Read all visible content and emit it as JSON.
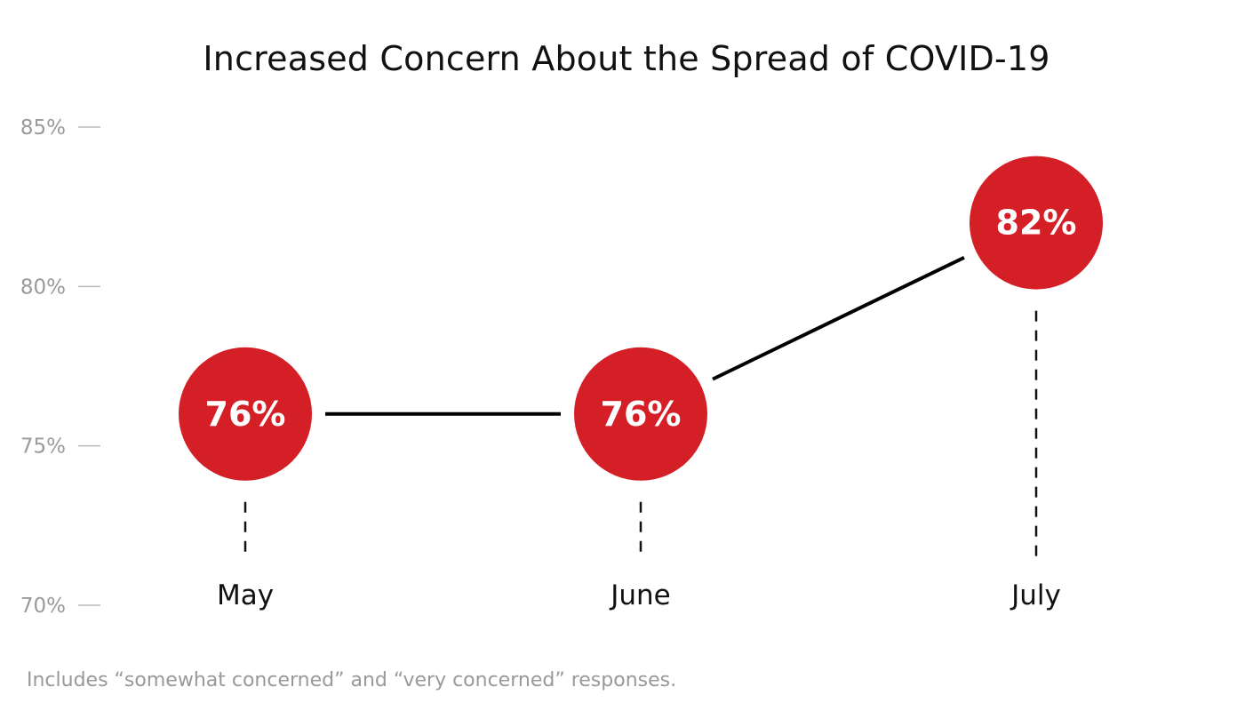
{
  "chart_data": {
    "type": "line",
    "title": "Increased Concern About the Spread of COVID-19",
    "footnote": "Includes “somewhat concerned” and “very concerned” responses.",
    "categories": [
      "May",
      "June",
      "July"
    ],
    "values": [
      76,
      76,
      82
    ],
    "value_labels": [
      "76%",
      "76%",
      "82%"
    ],
    "ylim": [
      70,
      85
    ],
    "yticks": [
      85,
      80,
      75,
      70
    ],
    "ytick_labels": [
      "85%",
      "80%",
      "75%",
      "70%"
    ],
    "grid": false,
    "legend": "none",
    "colors": {
      "marker": "#d41f27",
      "line": "#000000",
      "tick_text": "#9a9a9a",
      "tick_mark": "#bbbbbb",
      "category_text": "#111111",
      "value_text": "#ffffff"
    }
  }
}
